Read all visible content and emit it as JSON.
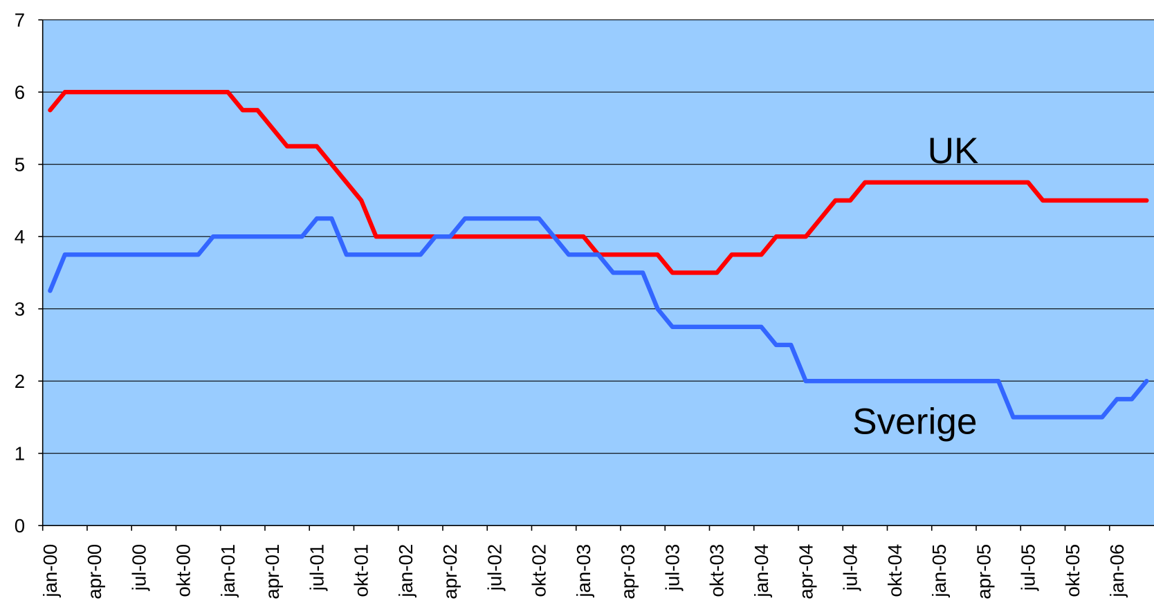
{
  "chart_data": {
    "type": "line",
    "categories": [
      "jan-00",
      null,
      null,
      "apr-00",
      null,
      null,
      "jul-00",
      null,
      null,
      "okt-00",
      null,
      null,
      "jan-01",
      null,
      null,
      "apr-01",
      null,
      null,
      "jul-01",
      null,
      null,
      "okt-01",
      null,
      null,
      "jan-02",
      null,
      null,
      "apr-02",
      null,
      null,
      "jul-02",
      null,
      null,
      "okt-02",
      null,
      null,
      "jan-03",
      null,
      null,
      "apr-03",
      null,
      null,
      "jul-03",
      null,
      null,
      "okt-03",
      null,
      null,
      "jan-04",
      null,
      null,
      "apr-04",
      null,
      null,
      "jul-04",
      null,
      null,
      "okt-04",
      null,
      null,
      "jan-05",
      null,
      null,
      "apr-05",
      null,
      null,
      "jul-05",
      null,
      null,
      "okt-05",
      null,
      null,
      "jan-06",
      null,
      null
    ],
    "series": [
      {
        "name": "UK",
        "color": "#ff0000",
        "values": [
          5.75,
          6,
          6,
          6,
          6,
          6,
          6,
          6,
          6,
          6,
          6,
          6,
          6,
          5.75,
          5.75,
          5.5,
          5.25,
          5.25,
          5.25,
          5,
          4.75,
          4.5,
          4,
          4,
          4,
          4,
          4,
          4,
          4,
          4,
          4,
          4,
          4,
          4,
          4,
          4,
          4,
          3.75,
          3.75,
          3.75,
          3.75,
          3.75,
          3.5,
          3.5,
          3.5,
          3.5,
          3.75,
          3.75,
          3.75,
          4,
          4,
          4,
          4.25,
          4.5,
          4.5,
          4.75,
          4.75,
          4.75,
          4.75,
          4.75,
          4.75,
          4.75,
          4.75,
          4.75,
          4.75,
          4.75,
          4.75,
          4.5,
          4.5,
          4.5,
          4.5,
          4.5,
          4.5,
          4.5,
          4.5
        ]
      },
      {
        "name": "Sverige",
        "color": "#3366ff",
        "values": [
          3.25,
          3.75,
          3.75,
          3.75,
          3.75,
          3.75,
          3.75,
          3.75,
          3.75,
          3.75,
          3.75,
          4,
          4,
          4,
          4,
          4,
          4,
          4,
          4.25,
          4.25,
          3.75,
          3.75,
          3.75,
          3.75,
          3.75,
          3.75,
          4,
          4,
          4.25,
          4.25,
          4.25,
          4.25,
          4.25,
          4.25,
          4,
          3.75,
          3.75,
          3.75,
          3.5,
          3.5,
          3.5,
          3,
          2.75,
          2.75,
          2.75,
          2.75,
          2.75,
          2.75,
          2.75,
          2.5,
          2.5,
          2,
          2,
          2,
          2,
          2,
          2,
          2,
          2,
          2,
          2,
          2,
          2,
          2,
          2,
          1.5,
          1.5,
          1.5,
          1.5,
          1.5,
          1.5,
          1.5,
          1.75,
          1.75,
          2
        ]
      }
    ],
    "ylim": [
      0,
      7
    ],
    "yticks": [
      0,
      1,
      2,
      3,
      4,
      5,
      6,
      7
    ],
    "grid": true
  }
}
